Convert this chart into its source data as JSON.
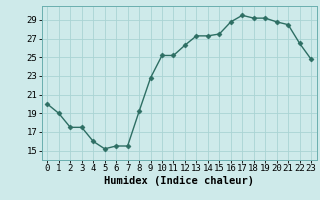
{
  "x": [
    0,
    1,
    2,
    3,
    4,
    5,
    6,
    7,
    8,
    9,
    10,
    11,
    12,
    13,
    14,
    15,
    16,
    17,
    18,
    19,
    20,
    21,
    22,
    23
  ],
  "y": [
    20.0,
    19.0,
    17.5,
    17.5,
    16.0,
    15.2,
    15.5,
    15.5,
    19.2,
    22.8,
    25.2,
    25.2,
    26.3,
    27.3,
    27.3,
    27.5,
    28.8,
    29.5,
    29.2,
    29.2,
    28.8,
    28.5,
    26.5,
    24.8
  ],
  "line_color": "#2d6e63",
  "marker": "D",
  "marker_size": 2.5,
  "bg_color": "#ceeaea",
  "grid_color": "#aad4d4",
  "xlabel": "Humidex (Indice chaleur)",
  "ylabel": "",
  "xlim": [
    -0.5,
    23.5
  ],
  "ylim": [
    14.0,
    30.5
  ],
  "yticks": [
    15,
    17,
    19,
    21,
    23,
    25,
    27,
    29
  ],
  "xticks": [
    0,
    1,
    2,
    3,
    4,
    5,
    6,
    7,
    8,
    9,
    10,
    11,
    12,
    13,
    14,
    15,
    16,
    17,
    18,
    19,
    20,
    21,
    22,
    23
  ],
  "tick_fontsize": 6.5,
  "xlabel_fontsize": 7.5,
  "xlabel_fontweight": "bold",
  "linewidth": 1.0
}
